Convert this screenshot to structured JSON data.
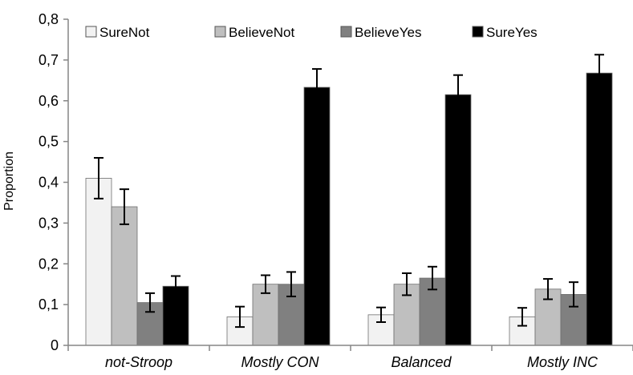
{
  "chart_data": {
    "type": "bar",
    "title": "",
    "xlabel": "",
    "ylabel": "Proportion",
    "ylim": [
      0,
      0.8
    ],
    "yticks": [
      "0",
      "0,1",
      "0,2",
      "0,3",
      "0,4",
      "0,5",
      "0,6",
      "0,7",
      "0,8"
    ],
    "categories": [
      "not-Stroop",
      "Mostly CON",
      "Balanced",
      "Mostly INC"
    ],
    "legend_position": "top",
    "grid": false,
    "series": [
      {
        "name": "SureNot",
        "color": "#f2f2f2",
        "values": [
          0.41,
          0.07,
          0.075,
          0.07
        ],
        "errors": [
          0.05,
          0.025,
          0.018,
          0.022
        ]
      },
      {
        "name": "BelieveNot",
        "color": "#bfbfbf",
        "values": [
          0.34,
          0.15,
          0.15,
          0.138
        ],
        "errors": [
          0.043,
          0.022,
          0.027,
          0.025
        ]
      },
      {
        "name": "BelieveYes",
        "color": "#808080",
        "values": [
          0.105,
          0.15,
          0.165,
          0.125
        ],
        "errors": [
          0.023,
          0.03,
          0.028,
          0.03
        ]
      },
      {
        "name": "SureYes",
        "color": "#000000",
        "values": [
          0.145,
          0.633,
          0.615,
          0.668
        ],
        "errors": [
          0.025,
          0.045,
          0.048,
          0.045
        ]
      }
    ]
  }
}
